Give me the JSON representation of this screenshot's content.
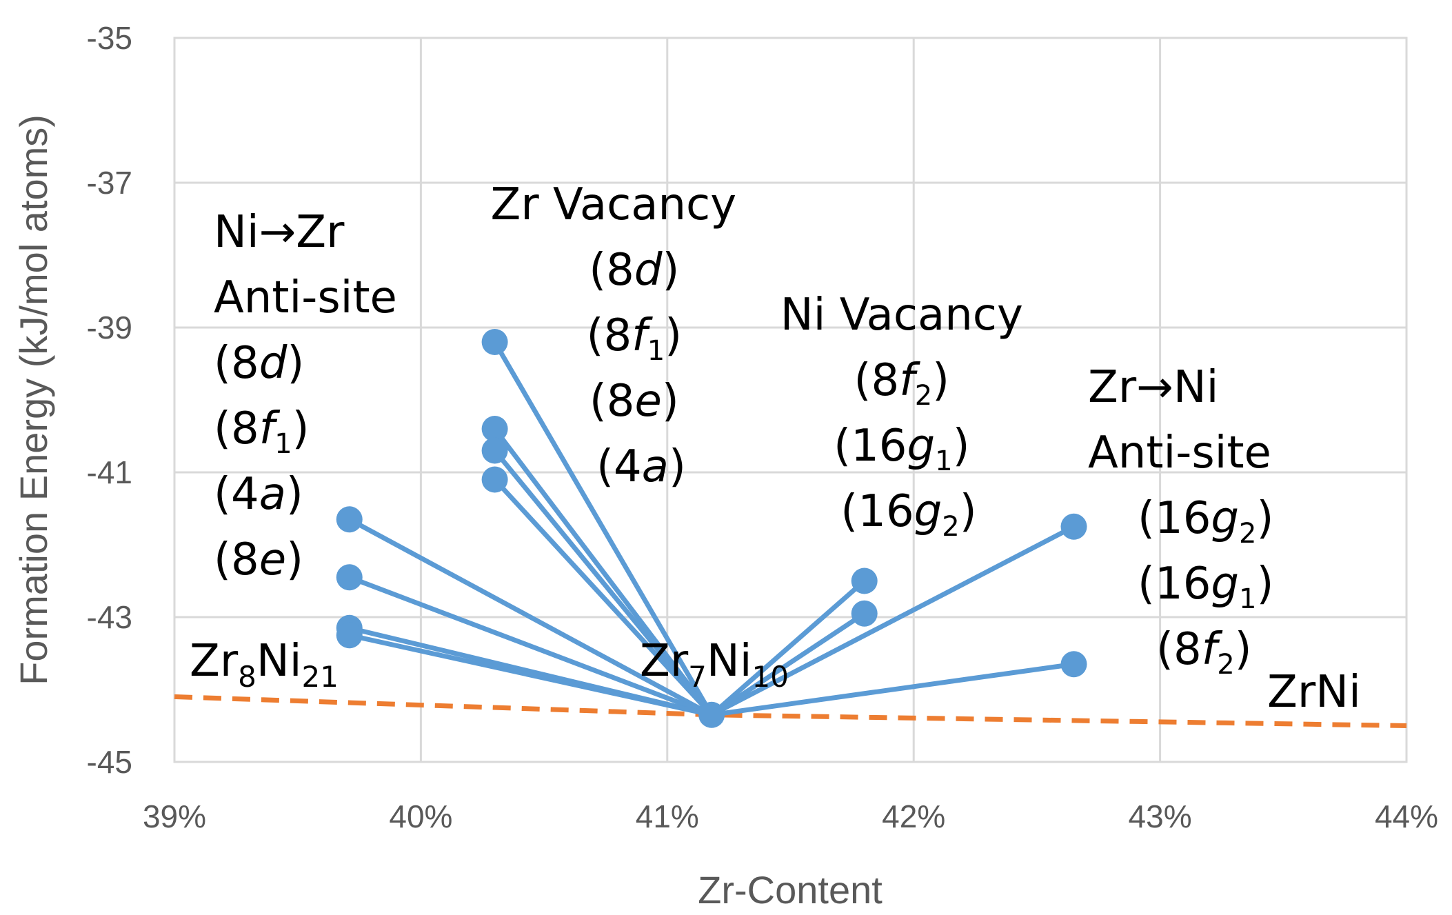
{
  "chart_data": {
    "type": "scatter",
    "title": "",
    "xlabel": "Zr-Content",
    "ylabel": "Formation Energy (kJ/mol atoms)",
    "xlim": [
      0.39,
      0.44
    ],
    "ylim": [
      -45,
      -35
    ],
    "x_ticks": [
      {
        "value": 0.39,
        "label": "39%"
      },
      {
        "value": 0.4,
        "label": "40%"
      },
      {
        "value": 0.41,
        "label": "41%"
      },
      {
        "value": 0.42,
        "label": "42%"
      },
      {
        "value": 0.43,
        "label": "43%"
      },
      {
        "value": 0.44,
        "label": "44%"
      }
    ],
    "y_ticks": [
      {
        "value": -35,
        "label": "-35"
      },
      {
        "value": -37,
        "label": "-37"
      },
      {
        "value": -39,
        "label": "-39"
      },
      {
        "value": -41,
        "label": "-41"
      },
      {
        "value": -43,
        "label": "-43"
      },
      {
        "value": -45,
        "label": "-45"
      }
    ],
    "grid": true,
    "colors": {
      "defects": "#5b9bd5",
      "hull": "#ed7d31"
    },
    "center": {
      "x": 0.4118,
      "y": -44.35
    },
    "defects": [
      {
        "x": 0.3971,
        "y": -41.65
      },
      {
        "x": 0.3971,
        "y": -42.45
      },
      {
        "x": 0.3971,
        "y": -43.15
      },
      {
        "x": 0.3971,
        "y": -43.25
      },
      {
        "x": 0.403,
        "y": -39.2
      },
      {
        "x": 0.403,
        "y": -40.4
      },
      {
        "x": 0.403,
        "y": -40.7
      },
      {
        "x": 0.403,
        "y": -41.1
      },
      {
        "x": 0.418,
        "y": -42.5
      },
      {
        "x": 0.418,
        "y": -42.95
      },
      {
        "x": 0.4265,
        "y": -41.75
      },
      {
        "x": 0.4265,
        "y": -43.65
      }
    ],
    "hull": [
      {
        "x": 0.39,
        "y": -44.1
      },
      {
        "x": 0.4118,
        "y": -44.35
      },
      {
        "x": 0.44,
        "y": -44.5
      }
    ],
    "annotations": {
      "nizr_lines": [
        "Ni→Zr",
        "Anti-site",
        "(8d)",
        "(8f1)",
        "(4a)",
        "(8e)"
      ],
      "zrvac_lines": [
        "Zr Vacancy",
        "(8d)",
        "(8f1)",
        "(8e)",
        "(4a)"
      ],
      "nivac_lines": [
        "Ni Vacancy",
        "(8f2)",
        "(16g1)",
        "(16g2)"
      ],
      "zrni_lines": [
        "Zr→Ni",
        "Anti-site",
        "(16g2)",
        "(16g1)",
        "(8f2)"
      ],
      "zr8ni21": "Zr8Ni21",
      "zr7ni10": "Zr7Ni10",
      "zrni": "ZrNi"
    }
  }
}
